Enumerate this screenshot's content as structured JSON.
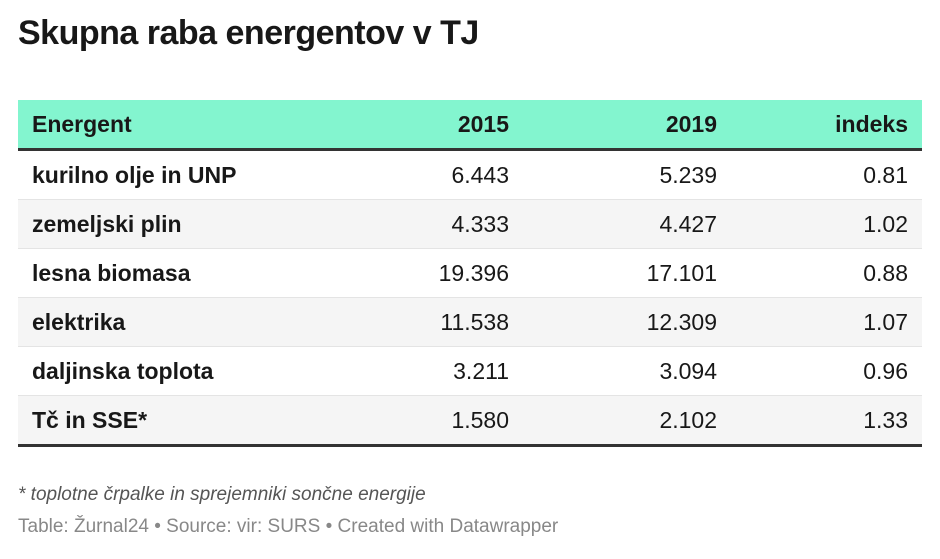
{
  "chart_data": {
    "type": "table",
    "title": "Skupna raba energentov v TJ",
    "columns": [
      "Energent",
      "2015",
      "2019",
      "indeks"
    ],
    "rows": [
      [
        "kurilno olje in UNP",
        "6.443",
        "5.239",
        "0.81"
      ],
      [
        "zemeljski plin",
        "4.333",
        "4.427",
        "1.02"
      ],
      [
        "lesna biomasa",
        "19.396",
        "17.101",
        "0.88"
      ],
      [
        "elektrika",
        "11.538",
        "12.309",
        "1.07"
      ],
      [
        "daljinska toplota",
        "3.211",
        "3.094",
        "0.96"
      ],
      [
        "Tč in SSE*",
        "1.580",
        "2.102",
        "1.33"
      ]
    ],
    "note": "* toplotne črpalke in sprejemniki sončne energije",
    "footer": "Table: Žurnal24 • Source: vir: SURS • Created with Datawrapper",
    "header_color": "#83f5cf"
  }
}
